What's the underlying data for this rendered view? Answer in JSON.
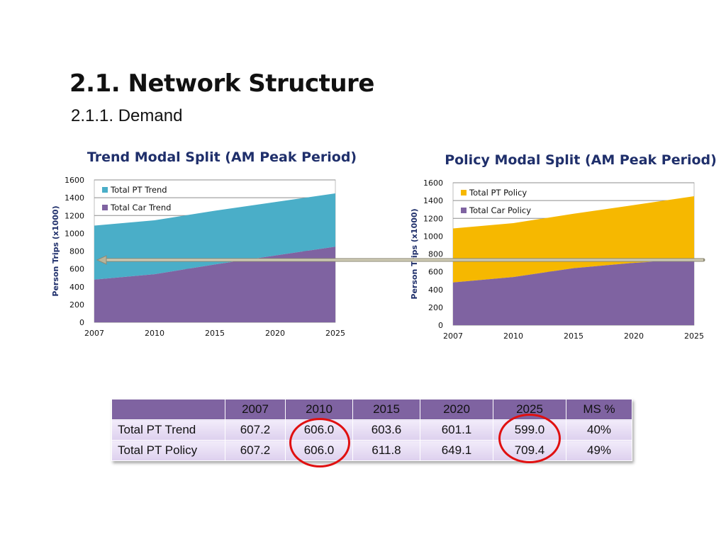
{
  "slide": {
    "title": "2.1. Network Structure",
    "subtitle": "2.1.1. Demand"
  },
  "colors": {
    "pt_trend": "#4aaec8",
    "car": "#7f63a1",
    "pt_policy": "#f6b800",
    "arrow": "#b8b49a",
    "highlight_circle": "#e01010",
    "table_header": "#7f63a1"
  },
  "chart_data": [
    {
      "type": "area",
      "stacked": true,
      "title": "Trend Modal Split (AM Peak Period)",
      "ylabel": "Person Trips (x1000)",
      "xlabel": "",
      "x": [
        "2007",
        "2010",
        "2015",
        "2020",
        "2025"
      ],
      "ylim": [
        0,
        1600
      ],
      "yticks": [
        "0",
        "200",
        "400",
        "600",
        "800",
        "1000",
        "1200",
        "1400",
        "1600"
      ],
      "grid": true,
      "legend_position": "top-left",
      "series": [
        {
          "name": "Total PT Trend",
          "values": [
            607,
            606,
            604,
            601,
            599
          ],
          "color": "#4aaec8"
        },
        {
          "name": "Total Car Trend",
          "values": [
            480,
            540,
            650,
            750,
            850
          ],
          "color": "#7f63a1"
        }
      ]
    },
    {
      "type": "area",
      "stacked": true,
      "title": "Policy Modal Split (AM Peak Period)",
      "ylabel": "Person Trips (x1000)",
      "xlabel": "",
      "x": [
        "2007",
        "2010",
        "2015",
        "2020",
        "2025"
      ],
      "ylim": [
        0,
        1600
      ],
      "yticks": [
        "0",
        "200",
        "400",
        "600",
        "800",
        "1000",
        "1200",
        "1400",
        "1600"
      ],
      "grid": true,
      "legend_position": "top-left",
      "series": [
        {
          "name": "Total PT Policy",
          "values": [
            607,
            606,
            612,
            649,
            709
          ],
          "color": "#f6b800"
        },
        {
          "name": "Total Car Policy",
          "values": [
            480,
            540,
            640,
            700,
            740
          ],
          "color": "#7f63a1"
        }
      ]
    }
  ],
  "table": {
    "headers": [
      "",
      "2007",
      "2010",
      "2015",
      "2020",
      "2025",
      "MS %"
    ],
    "rows": [
      {
        "label": "Total PT Trend",
        "cells": [
          "607.2",
          "606.0",
          "603.6",
          "601.1",
          "599.0",
          "40%"
        ]
      },
      {
        "label": "Total PT Policy",
        "cells": [
          "607.2",
          "606.0",
          "611.8",
          "649.1",
          "709.4",
          "49%"
        ]
      }
    ]
  }
}
